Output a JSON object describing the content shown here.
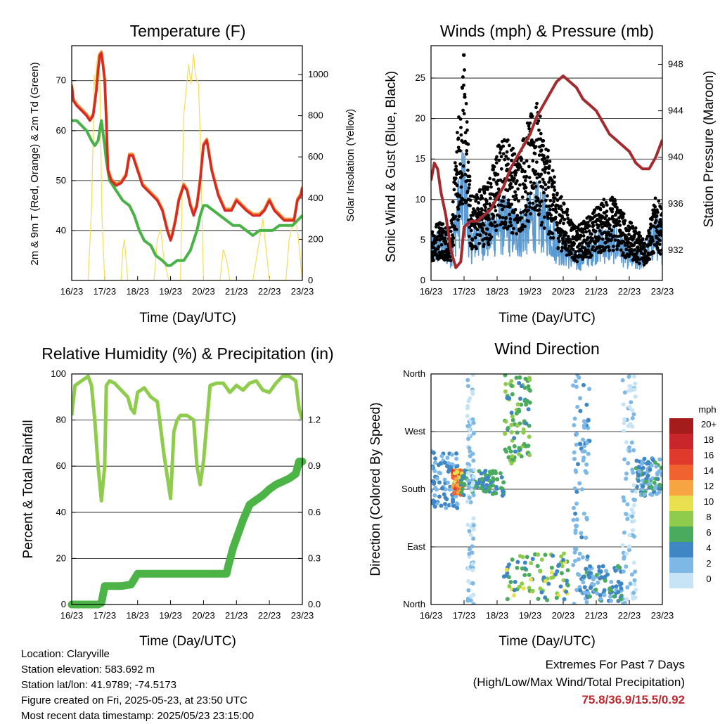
{
  "chart_data": [
    {
      "type": "line",
      "title": "Temperature (F)",
      "xlabel": "Time (Day/UTC)",
      "ylabel": "2m & 9m T (Red, Orange) & 2m Td (Green)",
      "ylabel_right": "Solar Insolation (Yellow)",
      "x_ticks": [
        "16/23",
        "17/23",
        "18/23",
        "19/23",
        "20/23",
        "21/23",
        "22/23",
        "23/23"
      ],
      "ylim": [
        30,
        77
      ],
      "y_ticks": [
        40,
        50,
        60,
        70
      ],
      "y2lim": [
        0,
        1140
      ],
      "y2_ticks": [
        0,
        200,
        400,
        600,
        800,
        1000
      ],
      "grid": "horizontal",
      "series": [
        {
          "color": "#d62a24",
          "axis": "left",
          "x": [
            0,
            0.05,
            0.15,
            0.3,
            0.45,
            0.55,
            0.65,
            0.75,
            0.8,
            0.85,
            0.9,
            0.95,
            1.0,
            1.05,
            1.1,
            1.2,
            1.35,
            1.5,
            1.65,
            1.75,
            1.85,
            2.0,
            2.15,
            2.3,
            2.45,
            2.6,
            2.75,
            2.9,
            3.0,
            3.05,
            3.15,
            3.25,
            3.4,
            3.5,
            3.6,
            3.7,
            3.8,
            3.9,
            4.0,
            4.1,
            4.25,
            4.45,
            4.65,
            4.85,
            5.0,
            5.15,
            5.3,
            5.5,
            5.7,
            5.85,
            6.0,
            6.15,
            6.3,
            6.45,
            6.6,
            6.75,
            6.85,
            6.95,
            7.0
          ],
          "y": [
            69,
            66,
            65,
            64,
            63,
            62,
            63,
            68,
            72,
            75,
            75.5,
            73,
            70,
            62,
            52,
            50,
            49,
            49.5,
            51,
            55,
            55,
            52,
            49,
            48,
            47,
            46,
            44,
            40,
            38,
            39,
            42,
            46,
            49,
            48,
            45,
            43,
            45,
            50,
            57,
            58,
            52,
            47,
            44,
            44,
            46,
            45,
            44,
            43,
            43,
            44,
            46,
            44,
            43,
            42,
            42,
            42,
            46,
            47,
            48.5
          ]
        },
        {
          "color": "#f29038",
          "axis": "left",
          "x": [
            0,
            0.05,
            0.15,
            0.3,
            0.45,
            0.55,
            0.65,
            0.75,
            0.8,
            0.85,
            0.9,
            0.95,
            1.0,
            1.05,
            1.1,
            1.2,
            1.35,
            1.5,
            1.65,
            1.75,
            1.85,
            2.0,
            2.15,
            2.3,
            2.45,
            2.6,
            2.75,
            2.9,
            3.0,
            3.05,
            3.15,
            3.25,
            3.4,
            3.5,
            3.6,
            3.7,
            3.8,
            3.9,
            4.0,
            4.1,
            4.25,
            4.45,
            4.65,
            4.85,
            5.0,
            5.15,
            5.3,
            5.5,
            5.7,
            5.85,
            6.0,
            6.15,
            6.3,
            6.45,
            6.6,
            6.75,
            6.85,
            6.95,
            7.0
          ],
          "y": [
            69.3,
            66.3,
            65.3,
            64.3,
            63.3,
            62.3,
            63.3,
            68.3,
            72.3,
            75.3,
            75.8,
            73.3,
            70.3,
            62.3,
            52.3,
            50.3,
            49.3,
            49.8,
            51.3,
            55.3,
            55.3,
            52.3,
            49.3,
            48.3,
            47.3,
            46.3,
            44.3,
            40.3,
            38.3,
            39.3,
            42.3,
            46.3,
            49.3,
            48.3,
            45.3,
            43.3,
            45.3,
            50.3,
            57.3,
            58.3,
            52.3,
            47.3,
            44.3,
            44.3,
            46.3,
            45.3,
            44.3,
            43.3,
            43.3,
            44.3,
            46.3,
            44.3,
            43.3,
            42.3,
            42.3,
            42.3,
            46.3,
            47.3,
            48.8
          ]
        },
        {
          "color": "#49b247",
          "axis": "left",
          "x": [
            0,
            0.15,
            0.3,
            0.45,
            0.6,
            0.7,
            0.8,
            0.9,
            1.0,
            1.05,
            1.15,
            1.35,
            1.55,
            1.75,
            1.9,
            2.05,
            2.2,
            2.4,
            2.55,
            2.75,
            2.9,
            3.0,
            3.2,
            3.4,
            3.5,
            3.6,
            3.7,
            3.8,
            3.9,
            4.0,
            4.1,
            4.3,
            4.5,
            4.7,
            4.9,
            5.1,
            5.3,
            5.5,
            5.7,
            5.9,
            6.1,
            6.3,
            6.5,
            6.7,
            6.85,
            7.0
          ],
          "y": [
            62,
            62,
            61,
            60,
            58,
            57,
            58,
            62,
            57,
            54,
            50,
            48,
            46,
            45,
            43,
            40,
            38,
            37,
            35,
            34,
            33,
            33,
            34,
            34,
            35,
            36,
            38,
            40,
            43,
            45,
            45,
            44,
            43,
            42,
            41,
            41,
            40,
            39,
            40,
            40,
            40,
            41,
            41,
            41,
            42,
            43
          ]
        },
        {
          "color": "#f5dd55",
          "axis": "right",
          "x": [
            0.5,
            0.6,
            0.65,
            0.68,
            0.72,
            0.75,
            0.8,
            0.85,
            0.88,
            0.92,
            1.0,
            1.5,
            1.55,
            1.6,
            1.65,
            1.7,
            2.0,
            2.5,
            2.6,
            2.7,
            2.8,
            2.95,
            3.0,
            3.3,
            3.4,
            3.55,
            3.62,
            3.7,
            3.75,
            3.85,
            3.9,
            4.0,
            4.5,
            4.6,
            4.7,
            4.8,
            5.0,
            5.5,
            5.7,
            5.8,
            6.0,
            6.5,
            6.6,
            6.75,
            6.85,
            7.0
          ],
          "y": [
            0,
            350,
            700,
            1000,
            900,
            1050,
            1100,
            1000,
            700,
            300,
            0,
            0,
            150,
            200,
            100,
            0,
            0,
            0,
            200,
            250,
            100,
            0,
            0,
            0,
            800,
            1050,
            950,
            1100,
            1000,
            950,
            700,
            0,
            0,
            150,
            100,
            0,
            0,
            0,
            200,
            300,
            0,
            0,
            200,
            300,
            250,
            0
          ]
        }
      ]
    },
    {
      "type": "line",
      "title": "Winds (mph) & Pressure (mb)",
      "xlabel": "Time (Day/UTC)",
      "ylabel": "Sonic Wind & Gust (Blue, Black)",
      "ylabel_right": "Station Pressure (Maroon)",
      "x_ticks": [
        "16/23",
        "17/23",
        "18/23",
        "19/23",
        "20/23",
        "21/23",
        "22/23",
        "23/23"
      ],
      "ylim": [
        0,
        29
      ],
      "y_ticks": [
        0,
        5,
        10,
        15,
        20,
        25
      ],
      "y2lim": [
        929.4,
        949.6
      ],
      "y2_ticks": [
        932,
        936,
        940,
        944,
        948
      ],
      "grid": "horizontal",
      "series": [
        {
          "color": "#5b9bd5",
          "axis": "left",
          "x": [
            0,
            0.3,
            0.6,
            0.8,
            1.0,
            1.2,
            1.5,
            1.8,
            2.0,
            2.3,
            2.6,
            2.9,
            3.2,
            3.5,
            3.8,
            4.1,
            4.4,
            4.7,
            5.0,
            5.3,
            5.6,
            5.9,
            6.2,
            6.5,
            6.8,
            7.0
          ],
          "y": [
            3,
            4,
            3,
            7,
            10,
            4,
            5,
            5,
            6,
            6,
            5,
            6,
            7,
            6,
            4,
            3,
            2,
            3,
            4,
            4,
            4,
            3,
            2,
            3,
            5,
            4
          ]
        },
        {
          "color": "#000000",
          "axis": "left",
          "x": [
            0,
            0.3,
            0.6,
            0.8,
            1.0,
            1.2,
            1.5,
            1.8,
            2.0,
            2.3,
            2.6,
            2.9,
            3.2,
            3.5,
            3.8,
            4.1,
            4.4,
            4.7,
            5.0,
            5.3,
            5.6,
            5.9,
            6.2,
            6.5,
            6.8,
            7.0
          ],
          "y": [
            5,
            6,
            5,
            15,
            22,
            8,
            9,
            10,
            13,
            14,
            12,
            15,
            17,
            13,
            9,
            7,
            5,
            6,
            7,
            8,
            8,
            6,
            5,
            4,
            8,
            7
          ]
        },
        {
          "color": "#a32a2e",
          "axis": "right",
          "x": [
            0,
            0.1,
            0.2,
            0.3,
            0.45,
            0.6,
            0.75,
            0.9,
            1.0,
            1.2,
            1.4,
            1.6,
            1.8,
            2.0,
            2.2,
            2.4,
            2.6,
            2.8,
            3.0,
            3.2,
            3.4,
            3.6,
            3.8,
            4.0,
            4.2,
            4.4,
            4.6,
            4.8,
            5.0,
            5.2,
            5.4,
            5.6,
            5.8,
            6.0,
            6.2,
            6.4,
            6.6,
            6.8,
            7.0
          ],
          "y": [
            938,
            939.5,
            939,
            937,
            935,
            932,
            930.5,
            931,
            934,
            934.5,
            934.5,
            935,
            935.5,
            936.5,
            937.5,
            939,
            940,
            941,
            942,
            943.5,
            944.5,
            945.5,
            946.5,
            947,
            946.5,
            946,
            945,
            944.5,
            944,
            943,
            942,
            941.5,
            941,
            940.5,
            939.5,
            939,
            939,
            940,
            941.5
          ]
        }
      ]
    },
    {
      "type": "line",
      "title": "Relative Humidity (%) & Precipitation (in)",
      "xlabel": "Time (Day/UTC)",
      "ylabel": "Percent & Total Rainfall",
      "x_ticks": [
        "16/23",
        "17/23",
        "18/23",
        "19/23",
        "20/23",
        "21/23",
        "22/23",
        "23/23"
      ],
      "ylim": [
        0,
        100
      ],
      "y_ticks": [
        0,
        20,
        40,
        60,
        80,
        100
      ],
      "y2lim": [
        0,
        1.5
      ],
      "y2_ticks": [
        "0.0",
        "0.3",
        "0.6",
        "0.9",
        "1.2"
      ],
      "grid": "horizontal",
      "series": [
        {
          "color": "#8fcc4e",
          "axis": "left",
          "x": [
            0,
            0.1,
            0.3,
            0.5,
            0.6,
            0.7,
            0.8,
            0.9,
            1.0,
            1.05,
            1.15,
            1.3,
            1.5,
            1.7,
            1.8,
            1.9,
            2.0,
            2.2,
            2.4,
            2.6,
            2.8,
            3.0,
            3.1,
            3.2,
            3.3,
            3.5,
            3.7,
            3.8,
            3.9,
            4.0,
            4.2,
            4.4,
            4.6,
            4.8,
            5.0,
            5.2,
            5.4,
            5.6,
            5.8,
            6.0,
            6.2,
            6.4,
            6.6,
            6.8,
            6.9,
            7.0
          ],
          "y": [
            82,
            95,
            97,
            99,
            95,
            80,
            60,
            45,
            60,
            95,
            97,
            96,
            93,
            90,
            85,
            83,
            92,
            94,
            90,
            88,
            65,
            46,
            75,
            80,
            82,
            82,
            80,
            60,
            52,
            62,
            95,
            96,
            96,
            92,
            95,
            93,
            96,
            97,
            93,
            92,
            96,
            99,
            99,
            97,
            85,
            80
          ]
        },
        {
          "color": "#4cb447",
          "axis": "right",
          "x": [
            0,
            0.8,
            0.9,
            1.0,
            1.5,
            1.8,
            2.0,
            2.5,
            3.0,
            3.5,
            4.0,
            4.5,
            4.7,
            4.75,
            4.9,
            5.0,
            5.2,
            5.4,
            5.6,
            5.8,
            6.0,
            6.2,
            6.4,
            6.6,
            6.8,
            6.9,
            7.0
          ],
          "y": [
            0,
            0,
            0.01,
            0.12,
            0.12,
            0.13,
            0.2,
            0.2,
            0.2,
            0.2,
            0.2,
            0.2,
            0.2,
            0.25,
            0.37,
            0.43,
            0.55,
            0.65,
            0.68,
            0.71,
            0.75,
            0.78,
            0.8,
            0.82,
            0.85,
            0.93,
            0.93
          ]
        }
      ]
    },
    {
      "type": "scatter",
      "title": "Wind Direction",
      "xlabel": "Time (Day/UTC)",
      "ylabel": "Direction (Colored By Speed)",
      "x_ticks": [
        "16/23",
        "17/23",
        "18/23",
        "19/23",
        "20/23",
        "21/23",
        "22/23",
        "23/23"
      ],
      "y_ticks": [
        "North",
        "East",
        "South",
        "West",
        "North"
      ],
      "ylim": [
        0,
        360
      ],
      "grid": "horizontal",
      "colorbar": {
        "title": "mph",
        "labels": [
          "20+",
          "18",
          "16",
          "14",
          "12",
          "10",
          "8",
          "6",
          "4",
          "2",
          "0"
        ],
        "colors": [
          "#a51c1c",
          "#c8262a",
          "#e03a2c",
          "#f0622f",
          "#f7a443",
          "#e8e04e",
          "#8fcc4e",
          "#4aab5e",
          "#3f86c4",
          "#7db8e6",
          "#c6e4f5"
        ]
      },
      "clusters": [
        {
          "x": [
            0.0,
            0.8
          ],
          "dir": [
            150,
            240
          ],
          "speed": [
            1,
            5
          ]
        },
        {
          "x": [
            0.65,
            0.95
          ],
          "dir": [
            170,
            210
          ],
          "speed": [
            9,
            16
          ]
        },
        {
          "x": [
            0.9,
            2.2
          ],
          "dir": [
            170,
            210
          ],
          "speed": [
            3,
            7
          ]
        },
        {
          "x": [
            1.1,
            1.3
          ],
          "dir": [
            0,
            360
          ],
          "speed": [
            0,
            3
          ]
        },
        {
          "x": [
            2.2,
            3.0
          ],
          "dir": [
            220,
            360
          ],
          "speed": [
            4,
            9
          ]
        },
        {
          "x": [
            2.2,
            4.2
          ],
          "dir": [
            5,
            80
          ],
          "speed": [
            3,
            10
          ]
        },
        {
          "x": [
            4.3,
            4.8
          ],
          "dir": [
            0,
            360
          ],
          "speed": [
            1,
            4
          ]
        },
        {
          "x": [
            4.6,
            5.8
          ],
          "dir": [
            5,
            60
          ],
          "speed": [
            2,
            6
          ]
        },
        {
          "x": [
            6.2,
            7.0
          ],
          "dir": [
            170,
            230
          ],
          "speed": [
            1,
            6
          ]
        },
        {
          "x": [
            5.8,
            6.2
          ],
          "dir": [
            0,
            360
          ],
          "speed": [
            0,
            2
          ]
        }
      ]
    }
  ],
  "info": {
    "location": "Location: Claryville",
    "elevation": "Station elevation: 583.692 m",
    "latlon": "Station lat/lon: 41.9789; -74.5173",
    "created": "Figure created on Fri, 2025-05-23, at 23:50 UTC",
    "recent": "Most recent data timestamp: 2025/05/23 23:15:00"
  },
  "extremes": {
    "heading": "Extremes For Past 7 Days",
    "subheading": "(High/Low/Max Wind/Total Precipitation)",
    "values": "75.8/36.9/15.5/0.92"
  }
}
